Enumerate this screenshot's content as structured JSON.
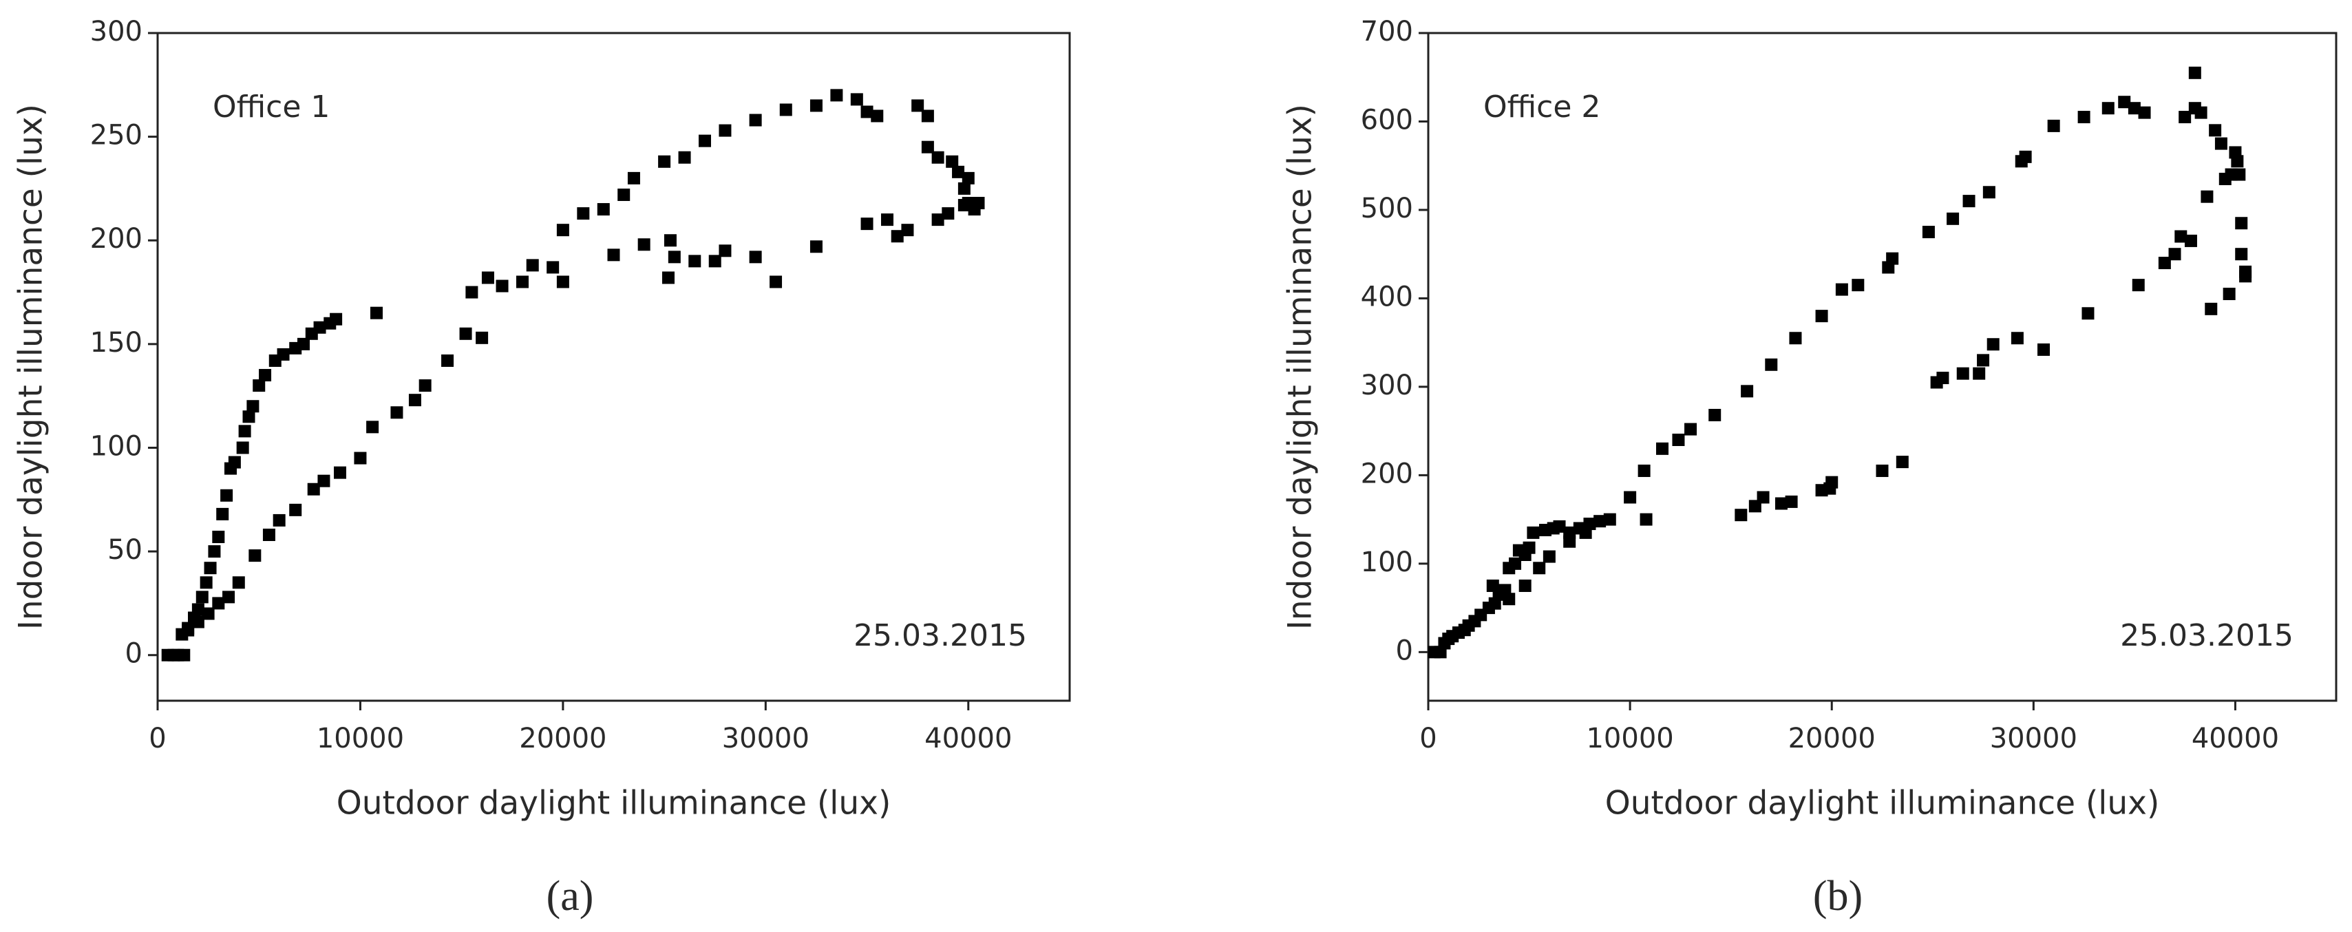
{
  "chart_data": [
    {
      "type": "scatter",
      "caption": "(a)",
      "xlabel": "Outdoor daylight illuminance (lux)",
      "ylabel": "Indoor daylight illuminance (lux)",
      "annotations": [
        "Office 1",
        "25.03.2015"
      ],
      "color": "#000000",
      "xlim": [
        0,
        45000
      ],
      "ylim": [
        -22,
        300
      ],
      "xticks": [
        0,
        10000,
        20000,
        30000,
        40000
      ],
      "yticks": [
        0,
        50,
        100,
        150,
        200,
        250,
        300
      ],
      "x": [
        500,
        800,
        1000,
        1300,
        1200,
        1500,
        1800,
        2000,
        2200,
        2400,
        2600,
        2800,
        3000,
        3200,
        3400,
        3600,
        3800,
        4200,
        4300,
        4500,
        4700,
        5000,
        5300,
        5800,
        6200,
        6800,
        7200,
        7600,
        8000,
        8500,
        8800,
        10800,
        1500,
        2000,
        2500,
        3000,
        3500,
        4000,
        4800,
        5500,
        6000,
        6800,
        7700,
        8200,
        9000,
        10000,
        10600,
        11800,
        12700,
        13200,
        14300,
        15200,
        16000,
        15500,
        16300,
        17000,
        18000,
        18500,
        19500,
        20000,
        20000,
        21000,
        22000,
        22500,
        23000,
        23500,
        24000,
        25000,
        25300,
        25500,
        25200,
        26000,
        26500,
        27000,
        27500,
        28000,
        28000,
        29500,
        29500,
        30500,
        31000,
        32500,
        32500,
        33500,
        34500,
        35000,
        35500,
        35000,
        36000,
        36500,
        37000,
        37500,
        38000,
        38000,
        38500,
        38500,
        39000,
        39200,
        39500,
        39800,
        40000,
        40000,
        40300,
        40500,
        39800
      ],
      "values": [
        0,
        0,
        0,
        0,
        10,
        13,
        18,
        22,
        28,
        35,
        42,
        50,
        57,
        68,
        77,
        90,
        93,
        100,
        108,
        115,
        120,
        130,
        135,
        142,
        145,
        148,
        150,
        155,
        158,
        160,
        162,
        165,
        12,
        16,
        20,
        25,
        28,
        35,
        48,
        58,
        65,
        70,
        80,
        84,
        88,
        95,
        110,
        117,
        123,
        130,
        142,
        155,
        153,
        175,
        182,
        178,
        180,
        188,
        187,
        180,
        205,
        213,
        215,
        193,
        222,
        230,
        198,
        238,
        200,
        192,
        182,
        240,
        190,
        248,
        190,
        195,
        253,
        192,
        258,
        180,
        263,
        197,
        265,
        270,
        268,
        262,
        260,
        208,
        210,
        202,
        205,
        265,
        260,
        245,
        240,
        210,
        213,
        238,
        233,
        225,
        230,
        218,
        215,
        218,
        217
      ]
    },
    {
      "type": "scatter",
      "caption": "(b)",
      "xlabel": "Outdoor daylight illuminance (lux)",
      "ylabel": "Indoor daylight illuminance (lux)",
      "annotations": [
        "Office 2",
        "25.03.2015"
      ],
      "color": "#000000",
      "xlim": [
        0,
        45000
      ],
      "ylim": [
        -55,
        700
      ],
      "xticks": [
        0,
        10000,
        20000,
        30000,
        40000
      ],
      "yticks": [
        0,
        100,
        200,
        300,
        400,
        500,
        600,
        700
      ],
      "x": [
        300,
        600,
        800,
        1000,
        1200,
        1500,
        1800,
        2000,
        2300,
        2600,
        3000,
        3300,
        3500,
        3800,
        4000,
        4300,
        4500,
        4800,
        5000,
        5200,
        5800,
        6200,
        6500,
        7000,
        7500,
        8000,
        8500,
        9000,
        3200,
        4000,
        4800,
        5500,
        6000,
        7000,
        7800,
        10000,
        10700,
        10800,
        11600,
        12400,
        13000,
        14200,
        15500,
        15800,
        16200,
        16600,
        17000,
        17500,
        18000,
        18200,
        19500,
        19500,
        19900,
        20000,
        20500,
        21300,
        22500,
        22800,
        23000,
        23500,
        24800,
        25200,
        25500,
        26000,
        26500,
        26800,
        27300,
        27500,
        27800,
        28000,
        29200,
        29600,
        29400,
        30500,
        31000,
        32500,
        32700,
        33700,
        34500,
        35000,
        35500,
        35200,
        36500,
        37000,
        37300,
        37800,
        37500,
        38000,
        38000,
        38300,
        38600,
        38800,
        39000,
        39300,
        39500,
        39700,
        39800,
        40000,
        40100,
        40200,
        40300,
        40300,
        40500,
        40500
      ],
      "values": [
        0,
        0,
        10,
        15,
        18,
        22,
        25,
        30,
        35,
        42,
        50,
        55,
        65,
        70,
        95,
        100,
        115,
        110,
        118,
        135,
        138,
        140,
        142,
        135,
        140,
        145,
        148,
        150,
        75,
        60,
        75,
        95,
        108,
        125,
        135,
        175,
        205,
        150,
        230,
        240,
        252,
        268,
        155,
        295,
        165,
        175,
        325,
        168,
        170,
        355,
        183,
        380,
        185,
        192,
        410,
        415,
        205,
        435,
        445,
        215,
        475,
        305,
        310,
        490,
        315,
        510,
        315,
        330,
        520,
        348,
        355,
        560,
        555,
        342,
        595,
        605,
        383,
        615,
        622,
        615,
        610,
        415,
        440,
        450,
        470,
        465,
        605,
        655,
        615,
        610,
        515,
        388,
        590,
        575,
        535,
        405,
        540,
        565,
        555,
        540,
        485,
        450,
        430,
        425
      ]
    }
  ]
}
